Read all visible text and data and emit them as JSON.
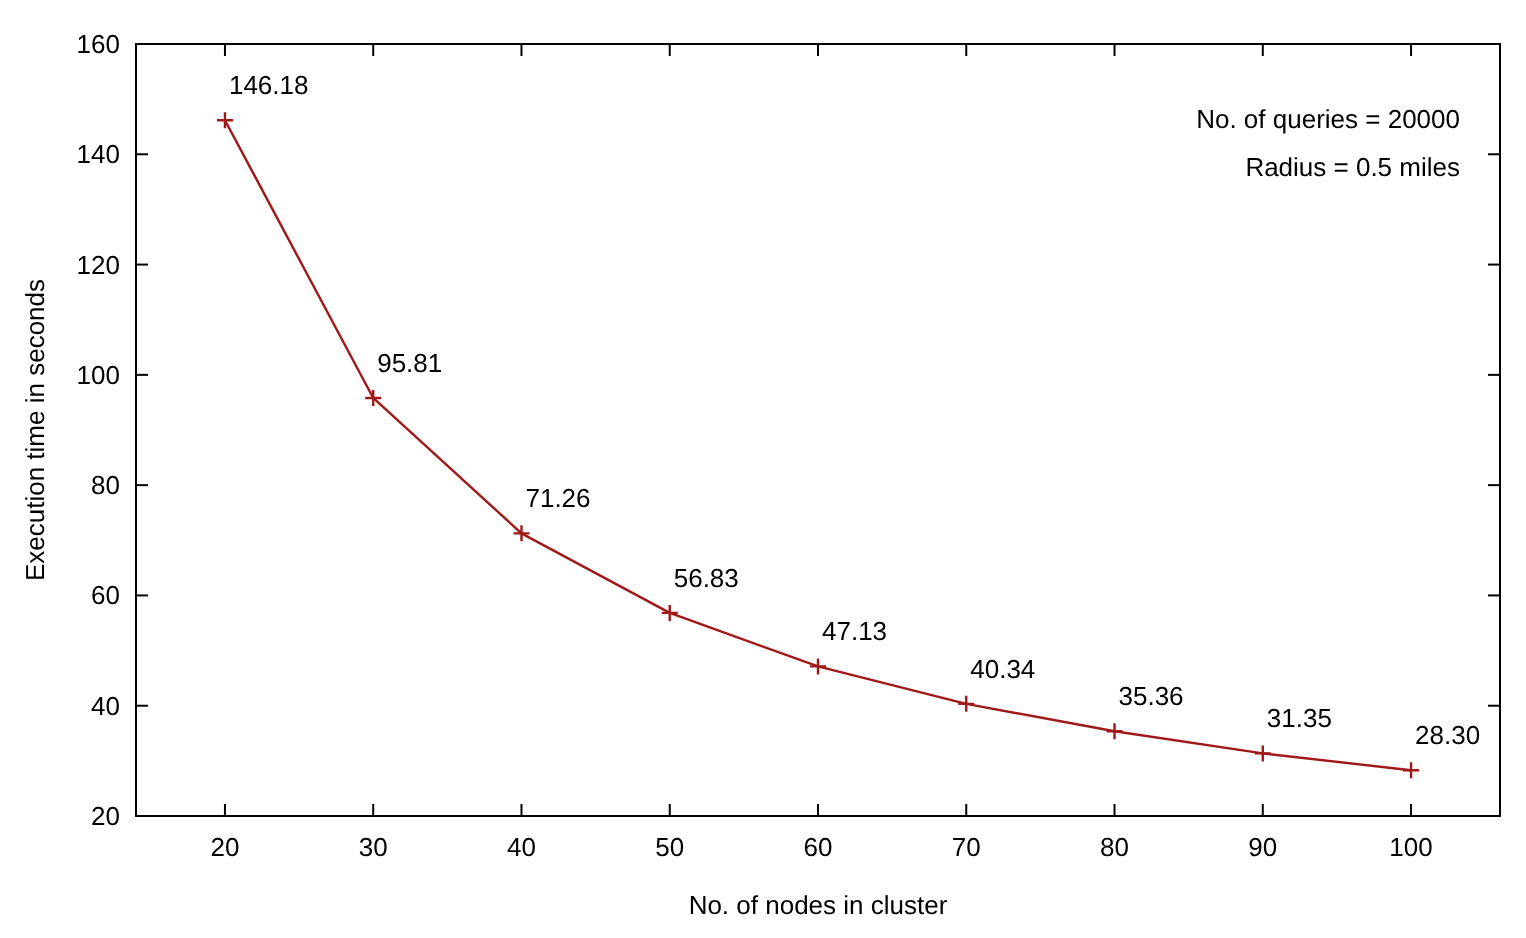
{
  "chart_data": {
    "type": "line",
    "xlabel": "No. of nodes in cluster",
    "ylabel": "Execution time in seconds",
    "x": [
      20,
      30,
      40,
      50,
      60,
      70,
      80,
      90,
      100
    ],
    "series": [
      {
        "color": "#a01818",
        "values": [
          146.18,
          95.81,
          71.26,
          56.83,
          47.13,
          40.34,
          35.36,
          31.35,
          28.3
        ],
        "value_labels": [
          "146.18",
          "95.81",
          "71.26",
          "56.83",
          "47.13",
          "40.34",
          "35.36",
          "31.35",
          "28.30"
        ]
      }
    ],
    "xlim": [
      14,
      106
    ],
    "xticks": [
      20,
      30,
      40,
      50,
      60,
      70,
      80,
      90,
      100
    ],
    "ylim": [
      20,
      160
    ],
    "yticks": [
      20,
      40,
      60,
      80,
      100,
      120,
      140,
      160
    ],
    "marker": "cross",
    "line_style": "solid",
    "grid": false,
    "annotations": [
      "No. of queries = 20000",
      "Radius = 0.5 miles"
    ]
  }
}
